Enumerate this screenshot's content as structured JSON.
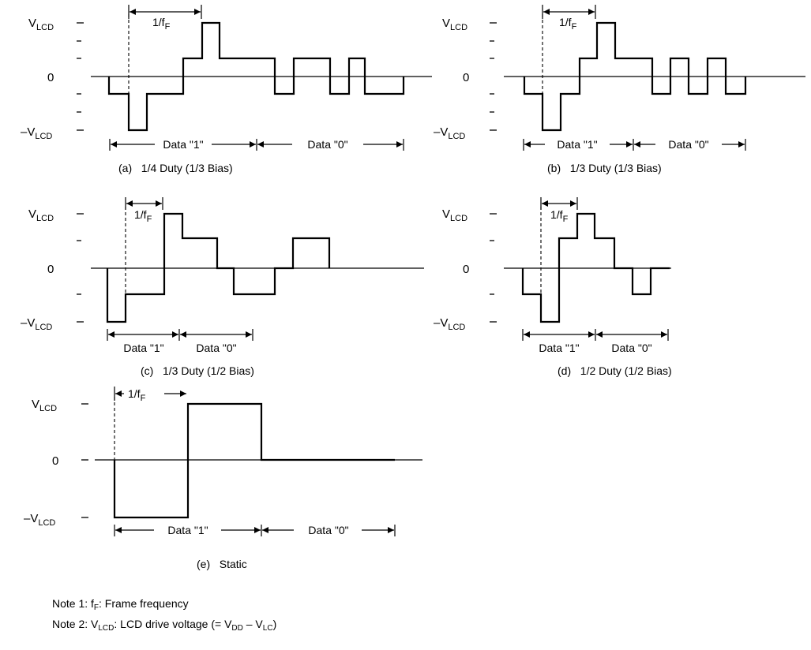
{
  "axis_labels": {
    "vlcd_main": "V",
    "vlcd_sub": "LCD",
    "zero": "0",
    "neg_vlcd_main": "–V",
    "neg_vlcd_sub": "LCD"
  },
  "period_label": {
    "main": "1/f",
    "sub": "F"
  },
  "panels": [
    {
      "caption": "(a)   1/4 Duty (1/3 Bias)",
      "data1": "Data \"1\"",
      "data0": "Data \"0\"",
      "levels": [
        -0.333,
        -1,
        -0.333,
        0.333,
        1,
        0.333,
        -0.333,
        0.333,
        -0.333,
        0.333,
        -0.333,
        -0.333
      ]
    },
    {
      "caption": "(b)   1/3 Duty (1/3 Bias)",
      "data1": "Data \"1\"",
      "data0": "Data \"0\"",
      "levels": [
        -0.333,
        -1,
        -0.333,
        0.333,
        1,
        0.333,
        -0.333,
        0.333,
        -0.333,
        0.333,
        -0.333,
        -0.333
      ]
    },
    {
      "caption": "(c)   1/3 Duty (1/2 Bias)",
      "data1": "Data \"1\"",
      "data0": "Data \"0\"",
      "levels": [
        -1,
        -0.5,
        1,
        0.5,
        0,
        -0.5,
        0,
        0.5
      ]
    },
    {
      "caption": "(d)   1/2 Duty (1/2 Bias)",
      "data1": "Data \"1\"",
      "data0": "Data \"0\"",
      "levels": [
        -0.5,
        -1,
        0.5,
        1,
        0.5,
        0,
        -0.5,
        0
      ]
    },
    {
      "caption": "(e)   Static",
      "data1": "Data \"1\"",
      "data0": "Data \"0\"",
      "levels": [
        -1,
        1,
        0
      ]
    }
  ],
  "notes": {
    "note1_prefix": "Note 1: f",
    "note1_sub": "F",
    "note1_rest": ": Frame frequency",
    "note2_prefix": "Note 2: V",
    "note2_sub": "LCD",
    "note2_mid": ": LCD drive voltage (= V",
    "note2_sub2": "DD",
    "note2_dash": " – V",
    "note2_sub3": "LC",
    "note2_end": ")"
  }
}
